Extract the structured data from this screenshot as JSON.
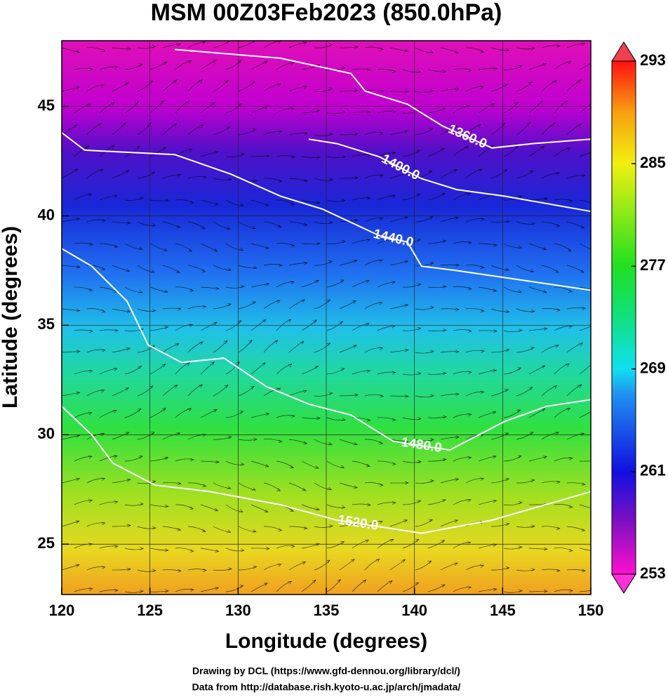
{
  "chart_data": {
    "type": "contour_map",
    "title": "MSM 00Z03Feb2023 (850.0hPa)",
    "x_label": "Longitude (degrees)",
    "y_label": "Latitude  (degrees)",
    "xlim": [
      120,
      150
    ],
    "ylim": [
      22.7,
      48
    ],
    "xticks": [
      120,
      125,
      130,
      135,
      140,
      145,
      150
    ],
    "yticks": [
      25,
      30,
      35,
      40,
      45
    ],
    "grid": true,
    "contour_color": "#ffffff",
    "contours": [
      {
        "level": {
          "value": 1360,
          "label": "1360.0"
        },
        "lon": [
          126.4,
          132.4,
          136.4,
          137.2,
          139.6,
          141.6,
          144.4,
          146.7,
          150
        ],
        "lat": [
          47.6,
          47.2,
          46.5,
          45.7,
          45.1,
          44.1,
          43.1,
          43.3,
          43.5
        ]
      },
      {
        "level": {
          "value": 1400,
          "label": "1400.0"
        },
        "lon": [
          134.0,
          135.6,
          138.0,
          140.4,
          142.4,
          145.1,
          150
        ],
        "lat": [
          43.5,
          43.3,
          42.7,
          41.7,
          41.2,
          40.9,
          40.2
        ]
      },
      {
        "level": {
          "value": 1440,
          "label": "1440.0"
        },
        "lon": [
          120,
          121.3,
          126.4,
          129.6,
          132.4,
          134.8,
          138.0,
          139.6,
          140.4,
          142.4,
          150
        ],
        "lat": [
          43.8,
          43.0,
          42.8,
          41.9,
          40.9,
          40.3,
          39.1,
          38.8,
          37.7,
          37.5,
          36.6
        ]
      },
      {
        "level": {
          "value": 1480,
          "label": "1480.0"
        },
        "lon": [
          120,
          121.7,
          123.7,
          124.9,
          126.8,
          129.2,
          131.6,
          134.0,
          136.4,
          138.8,
          142.0,
          145.1,
          147.5,
          150
        ],
        "lat": [
          38.5,
          37.7,
          36.1,
          34.1,
          33.3,
          33.5,
          32.2,
          31.4,
          30.9,
          29.7,
          29.3,
          30.6,
          31.3,
          31.6
        ]
      },
      {
        "level": {
          "value": 1520,
          "label": "1520.0"
        },
        "lon": [
          120,
          121.7,
          122.9,
          125.3,
          128.4,
          132.4,
          135.6,
          138.0,
          140.4,
          144.4,
          150
        ],
        "lat": [
          31.3,
          30.0,
          28.7,
          27.7,
          27.4,
          26.8,
          26.1,
          25.8,
          25.5,
          26.1,
          27.4
        ]
      }
    ],
    "colorbar": {
      "lim": [
        253,
        293
      ],
      "ticks": [
        253,
        261,
        269,
        277,
        285,
        293
      ]
    },
    "notes": [
      "Drawing by DCL (https://www.gfd-dennou.org/library/dcl/)",
      "Data from http://database.rish.kyoto-u.ac.jp/arch/jmadata/"
    ]
  }
}
